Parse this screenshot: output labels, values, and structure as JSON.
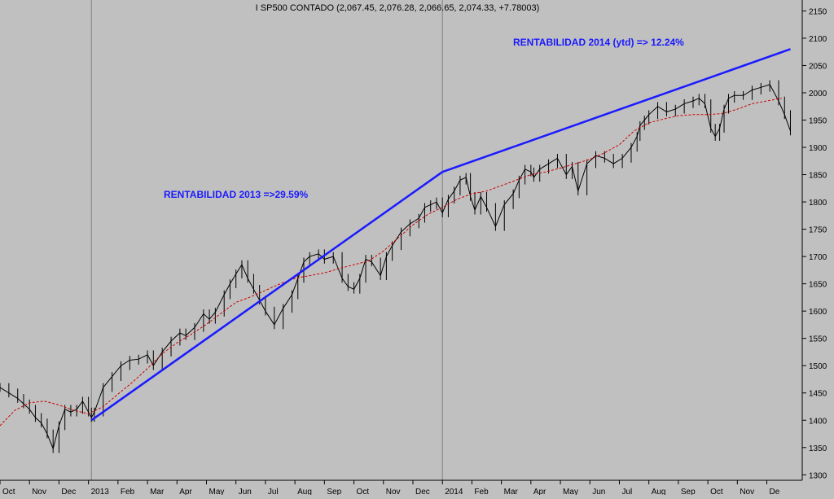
{
  "chart_data": {
    "type": "line",
    "title": "I SP500 CONTADO (2,067.45, 2,076.28, 2,066.65, 2,074.33, +7.78003)",
    "annotations": [
      {
        "text": "RENTABILIDAD 2013 =>29.59%",
        "color": "#1a1aff"
      },
      {
        "text": "RENTABILIDAD 2014 (ytd) => 12.24%",
        "color": "#1a1aff"
      }
    ],
    "x_tick_labels": [
      "Oct",
      "Nov",
      "Dec",
      "2013",
      "Feb",
      "Mar",
      "Apr",
      "May",
      "Jun",
      "Jul",
      "Aug",
      "Sep",
      "Oct",
      "Nov",
      "Dec",
      "2014",
      "Feb",
      "Mar",
      "Apr",
      "May",
      "Jun",
      "Jul",
      "Aug",
      "Sep",
      "Oct",
      "Nov",
      "De"
    ],
    "x_ticks": [
      0.5,
      1.5,
      2.5,
      3.5,
      4.5,
      5.5,
      6.5,
      7.5,
      8.5,
      9.5,
      10.5,
      11.5,
      12.5,
      13.5,
      14.5,
      15.5,
      16.5,
      17.5,
      18.5,
      19.5,
      20.5,
      21.5,
      22.5,
      23.5,
      24.5,
      25.5,
      26.5
    ],
    "y_ticks": [
      1300,
      1350,
      1400,
      1450,
      1500,
      1550,
      1600,
      1650,
      1700,
      1750,
      1800,
      1850,
      1900,
      1950,
      2000,
      2050,
      2100,
      2150
    ],
    "xlim": [
      0,
      27.2
    ],
    "ylim": [
      1290,
      2170
    ],
    "y_axis_position": "right",
    "grid": false,
    "year_separators": [
      3.1,
      15.0
    ],
    "series": [
      {
        "style": "price",
        "color": "#000000",
        "x": [
          0.0,
          0.3,
          0.6,
          0.8,
          1.0,
          1.2,
          1.4,
          1.6,
          1.8,
          2.0,
          2.2,
          2.4,
          2.6,
          2.8,
          3.0,
          3.1,
          3.2,
          3.5,
          3.8,
          4.1,
          4.4,
          4.7,
          5.0,
          5.2,
          5.5,
          5.8,
          6.1,
          6.3,
          6.6,
          6.9,
          7.1,
          7.3,
          7.6,
          7.8,
          8.0,
          8.2,
          8.4,
          8.6,
          8.8,
          9.0,
          9.3,
          9.6,
          9.9,
          10.1,
          10.3,
          10.5,
          10.8,
          11.0,
          11.3,
          11.6,
          11.8,
          12.0,
          12.2,
          12.4,
          12.6,
          12.9,
          13.1,
          13.3,
          13.6,
          13.9,
          14.2,
          14.4,
          14.6,
          14.8,
          15.0,
          15.2,
          15.4,
          15.6,
          15.8,
          15.95,
          16.1,
          16.3,
          16.5,
          16.8,
          17.1,
          17.4,
          17.6,
          17.8,
          18.0,
          18.1,
          18.3,
          18.6,
          18.9,
          19.2,
          19.4,
          19.6,
          19.9,
          20.2,
          20.5,
          20.8,
          21.1,
          21.4,
          21.6,
          21.7,
          21.85,
          22.0,
          22.3,
          22.6,
          22.9,
          23.2,
          23.5,
          23.7,
          23.9,
          24.1,
          24.25,
          24.4,
          24.55,
          24.7,
          24.9,
          25.2,
          25.5,
          25.8,
          26.1,
          26.4,
          26.6,
          26.8
        ],
        "values": [
          1460,
          1450,
          1440,
          1430,
          1420,
          1405,
          1395,
          1375,
          1348,
          1390,
          1420,
          1415,
          1420,
          1435,
          1415,
          1405,
          1415,
          1460,
          1480,
          1500,
          1510,
          1512,
          1520,
          1500,
          1525,
          1545,
          1560,
          1555,
          1570,
          1595,
          1585,
          1598,
          1630,
          1650,
          1668,
          1685,
          1660,
          1640,
          1620,
          1600,
          1575,
          1605,
          1630,
          1660,
          1690,
          1700,
          1705,
          1695,
          1700,
          1660,
          1645,
          1640,
          1660,
          1695,
          1690,
          1665,
          1700,
          1720,
          1745,
          1760,
          1770,
          1790,
          1795,
          1800,
          1780,
          1805,
          1820,
          1840,
          1845,
          1810,
          1785,
          1810,
          1790,
          1755,
          1795,
          1815,
          1840,
          1860,
          1855,
          1845,
          1860,
          1870,
          1880,
          1850,
          1865,
          1820,
          1870,
          1885,
          1880,
          1870,
          1880,
          1900,
          1920,
          1940,
          1950,
          1960,
          1975,
          1965,
          1970,
          1980,
          1985,
          1990,
          1980,
          1935,
          1920,
          1935,
          1970,
          1990,
          1995,
          1995,
          2005,
          2010,
          2015,
          1985,
          1960,
          1930
        ]
      },
      {
        "style": "moving-average",
        "color": "#cc0000",
        "dashed": true,
        "x": [
          0.0,
          0.5,
          1.0,
          1.5,
          2.0,
          2.5,
          3.0,
          3.5,
          4.0,
          4.5,
          5.0,
          5.5,
          6.0,
          6.5,
          7.0,
          7.5,
          8.0,
          8.5,
          9.0,
          9.5,
          10.0,
          10.5,
          11.0,
          11.5,
          12.0,
          12.5,
          13.0,
          13.5,
          14.0,
          14.5,
          15.0,
          15.5,
          16.0,
          16.5,
          17.0,
          17.5,
          18.0,
          18.5,
          19.0,
          19.5,
          20.0,
          20.5,
          21.0,
          21.5,
          22.0,
          22.5,
          23.0,
          23.5,
          24.0,
          24.5,
          25.0,
          25.5,
          26.0,
          26.5
        ],
        "values": [
          1390,
          1418,
          1432,
          1435,
          1428,
          1418,
          1412,
          1425,
          1448,
          1470,
          1495,
          1522,
          1542,
          1558,
          1576,
          1596,
          1616,
          1626,
          1638,
          1650,
          1660,
          1665,
          1670,
          1678,
          1685,
          1692,
          1710,
          1734,
          1758,
          1777,
          1790,
          1805,
          1815,
          1820,
          1830,
          1840,
          1850,
          1855,
          1862,
          1870,
          1878,
          1890,
          1905,
          1930,
          1945,
          1952,
          1958,
          1960,
          1960,
          1962,
          1970,
          1980,
          1985,
          1990
        ]
      },
      {
        "style": "trendline",
        "color": "#1a1aff",
        "x": [
          3.1,
          15.0
        ],
        "values": [
          1400,
          1855
        ]
      },
      {
        "style": "trendline",
        "color": "#1a1aff",
        "x": [
          15.0,
          26.8
        ],
        "values": [
          1855,
          2080
        ]
      }
    ]
  }
}
